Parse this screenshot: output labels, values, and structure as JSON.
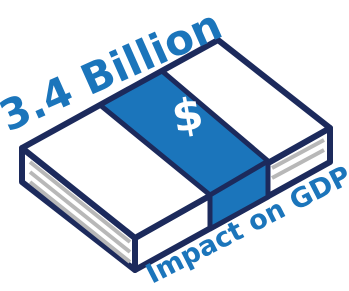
{
  "headline": "3.4 Billion",
  "symbol": "$",
  "caption": "Impact on GDP"
}
